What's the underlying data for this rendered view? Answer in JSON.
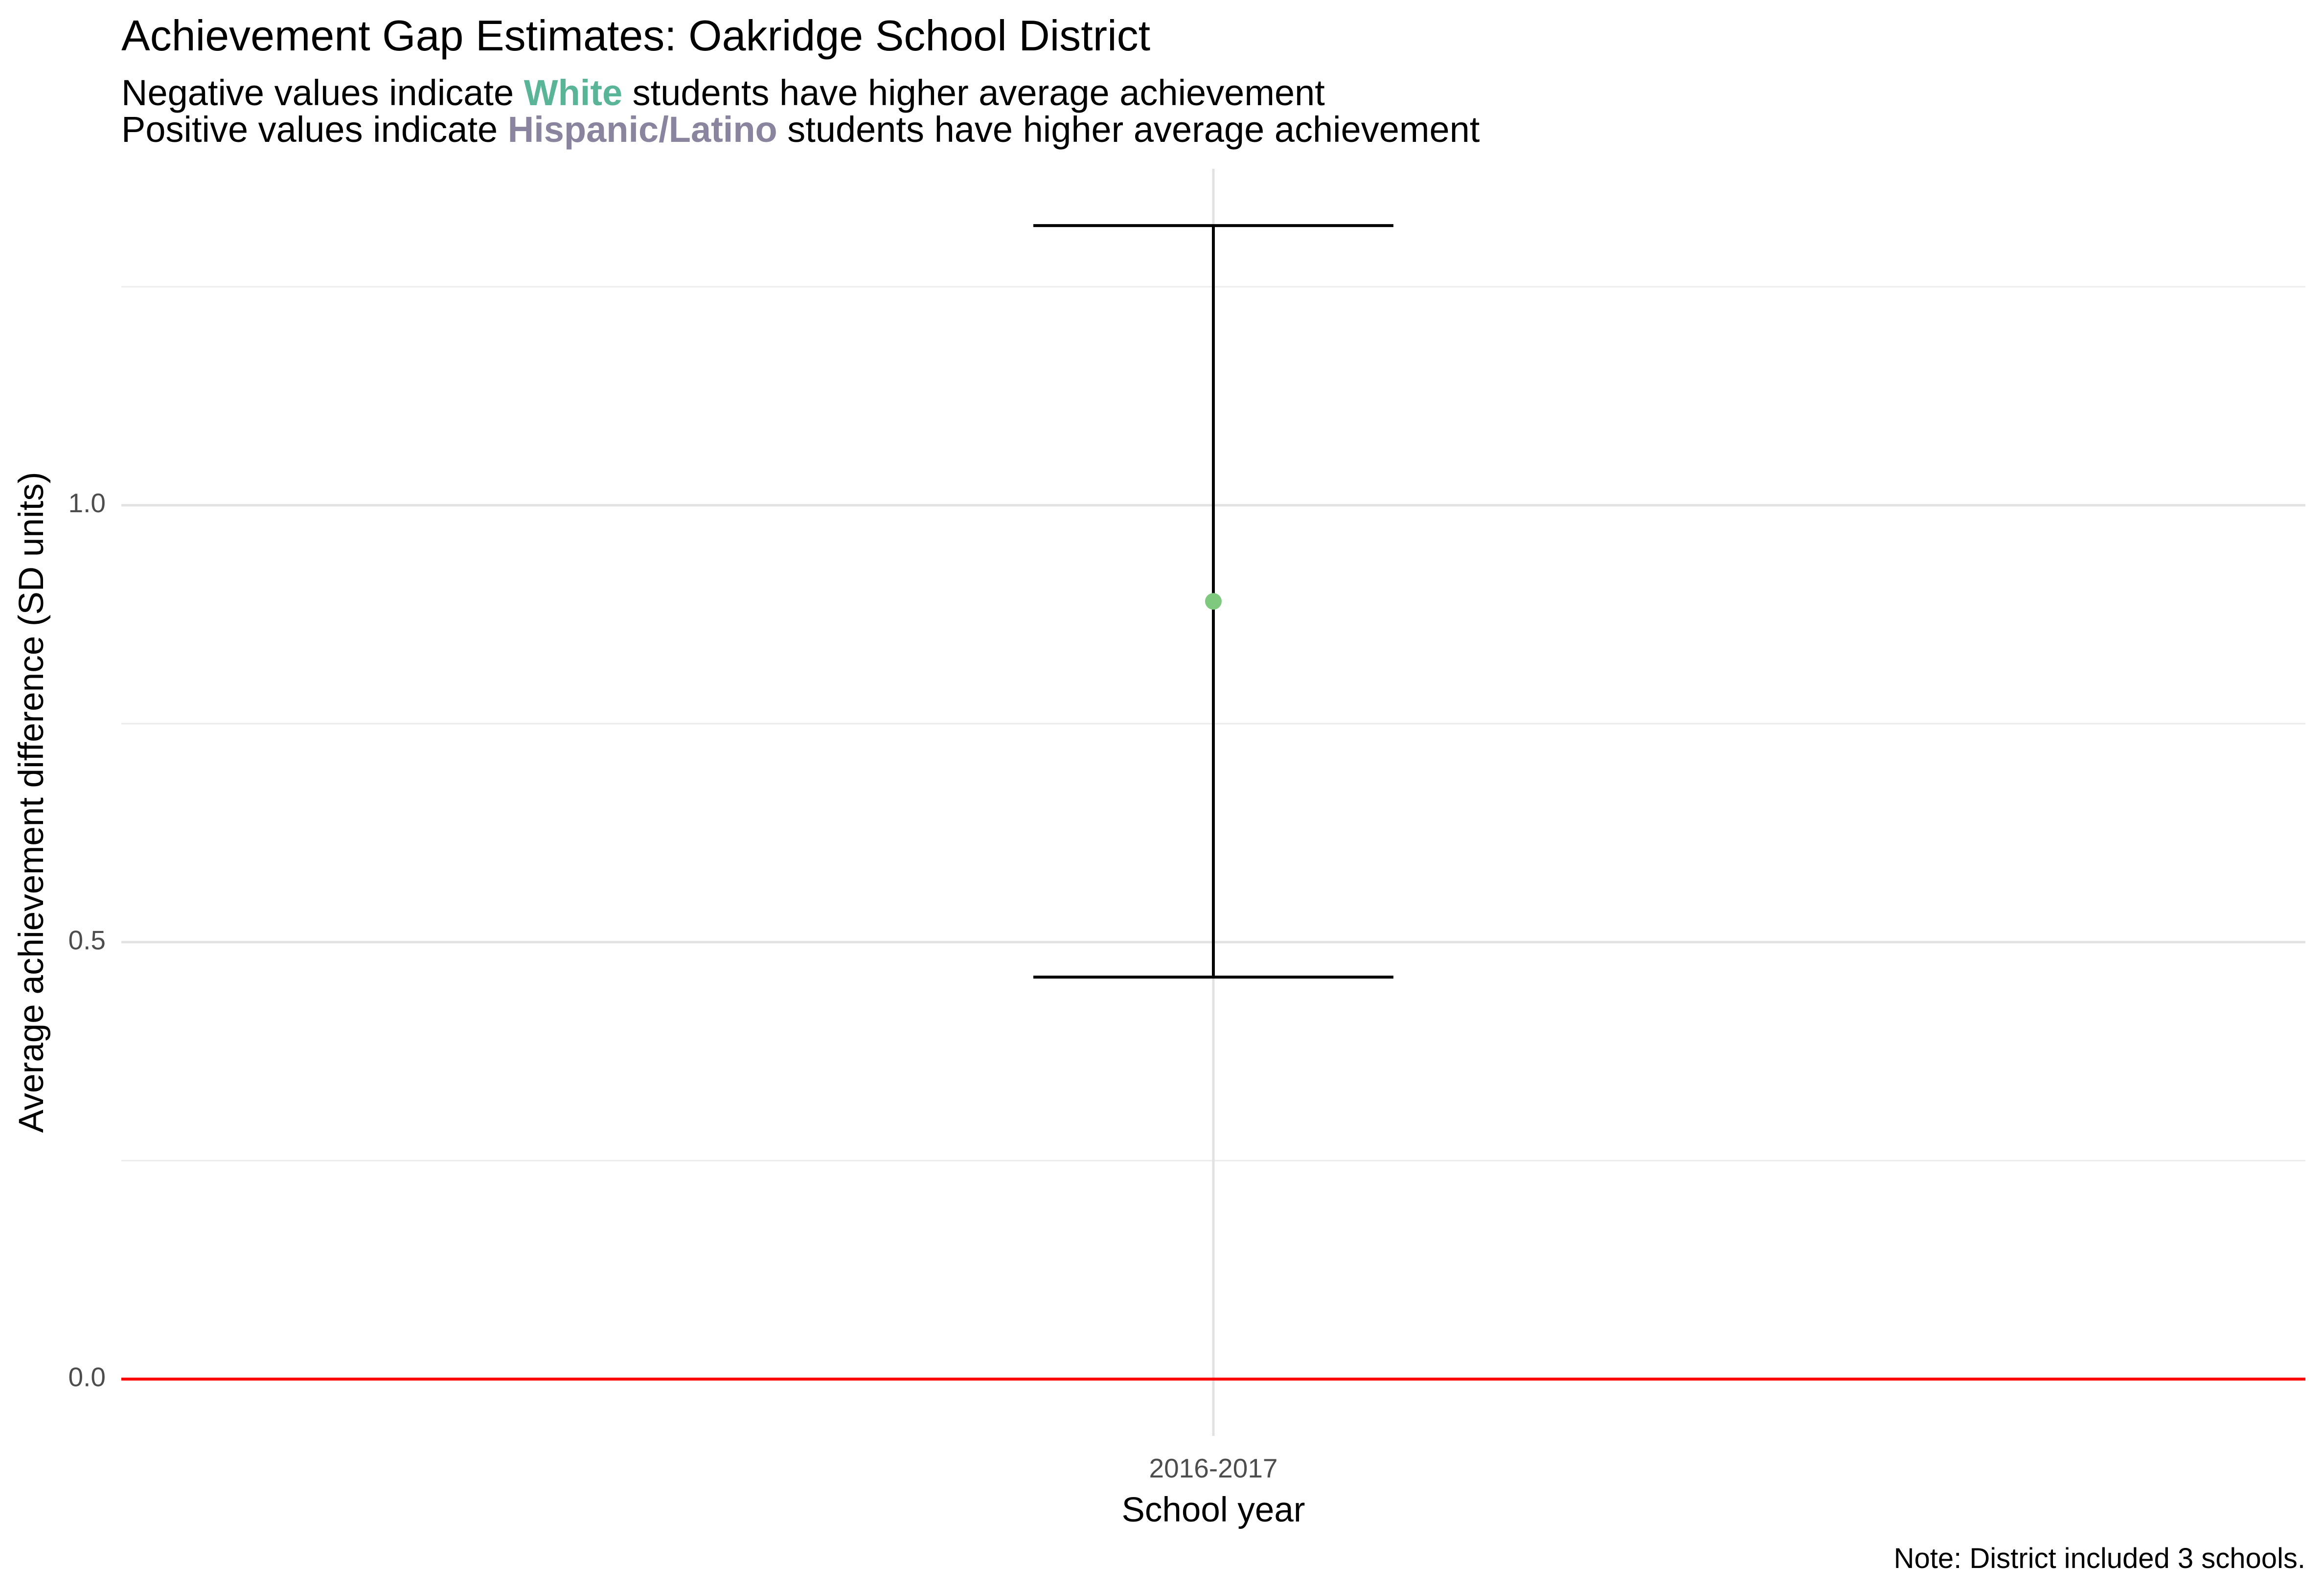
{
  "chart_data": {
    "type": "scatter",
    "title": "Achievement Gap Estimates: Oakridge School District",
    "subtitle_lines": [
      {
        "before": "Negative values indicate ",
        "highlight": "White",
        "highlight_color": "#5ab497",
        "after": " students have higher average achievement"
      },
      {
        "before": "Positive values indicate ",
        "highlight": "Hispanic/Latino",
        "highlight_color": "#8a849e",
        "after": " students have higher average achievement"
      }
    ],
    "xlabel": "School year",
    "ylabel": "Average achievement difference (SD units)",
    "categories": [
      "2016-2017"
    ],
    "points": [
      {
        "x": "2016-2017",
        "y": 0.89,
        "lower": 0.46,
        "upper": 1.32
      }
    ],
    "ylim": [
      -0.065,
      1.385
    ],
    "y_ticks": [
      0.0,
      0.5,
      1.0
    ],
    "y_tick_labels": [
      "0.0",
      "0.5",
      "1.0"
    ],
    "reference_line": {
      "y": 0.0,
      "color": "#ff0000"
    },
    "point_color": "#7fc97f",
    "errorbar_color": "#000000",
    "grid": true,
    "caption": "Note: District included 3 schools."
  }
}
